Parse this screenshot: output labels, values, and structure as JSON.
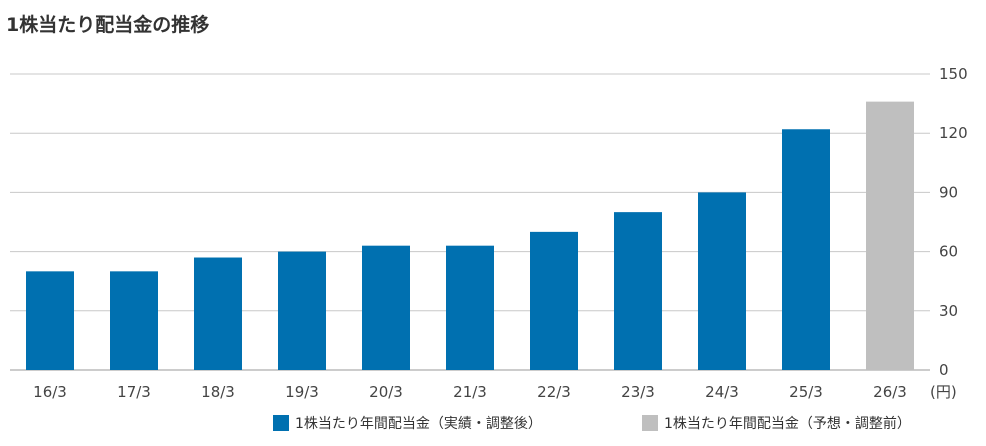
{
  "colors": {
    "actual": "#0070b0",
    "forecast": "#bfbfbf",
    "grid": "#c8c8c8",
    "axis": "#999999"
  },
  "chart_data": {
    "type": "bar",
    "title": "1株当たり配当金の推移",
    "categories": [
      "16/3",
      "17/3",
      "18/3",
      "19/3",
      "20/3",
      "21/3",
      "22/3",
      "23/3",
      "24/3",
      "25/3",
      "26/3"
    ],
    "series": [
      {
        "name": "1株当たり年間配当金（実績・調整後）",
        "values": [
          50,
          50,
          57,
          60,
          63,
          63,
          70,
          80,
          90,
          122,
          null
        ]
      },
      {
        "name": "1株当たり年間配当金（予想・調整前）",
        "values": [
          null,
          null,
          null,
          null,
          null,
          null,
          null,
          null,
          null,
          null,
          136
        ]
      }
    ],
    "yticks": [
      0,
      30,
      60,
      90,
      120,
      150
    ],
    "ylim": [
      0,
      150
    ],
    "yunit": "(円)",
    "y_axis_position": "right",
    "grid": true,
    "legend_position": "bottom-right"
  }
}
